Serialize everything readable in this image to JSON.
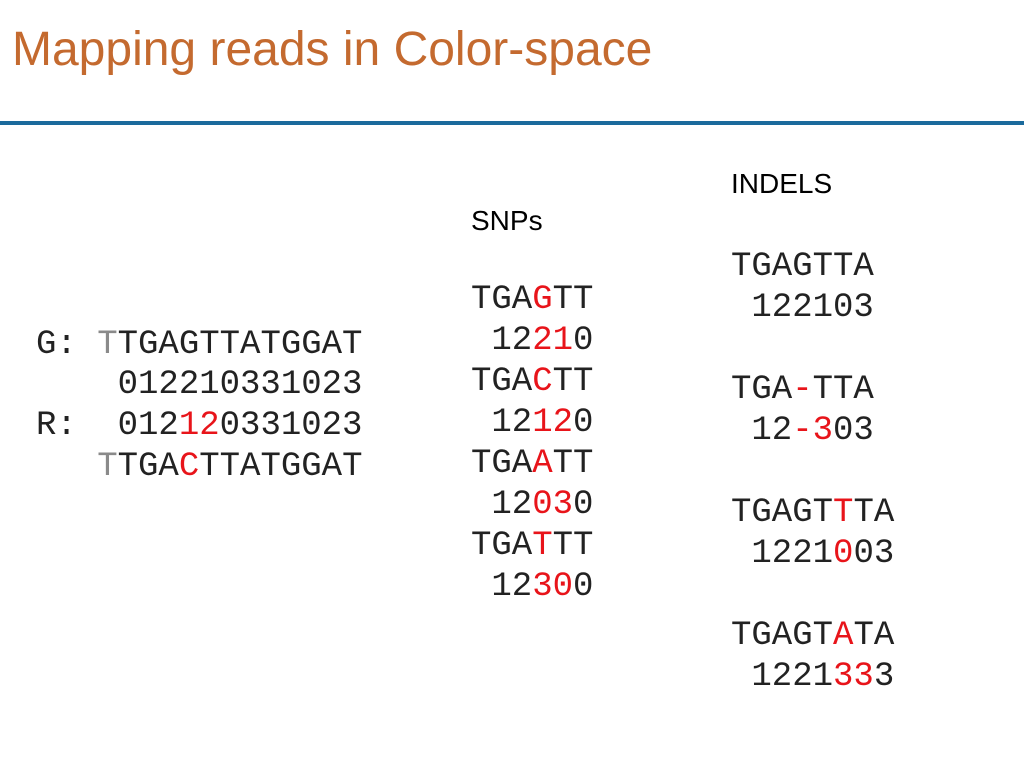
{
  "title": "Mapping reads in Color-space",
  "example": {
    "lines": [
      [
        "G: ",
        "T",
        "TGAGTTATGGAT"
      ],
      [
        "    012210331023"
      ],
      [
        "R:  012",
        "12",
        "0331023"
      ],
      [
        "   ",
        "T",
        "TGA",
        "C",
        "TTATGGAT"
      ]
    ]
  },
  "snps": {
    "heading": "SNPs",
    "lines": [
      [
        "TGA",
        "G",
        "TT"
      ],
      [
        " 12",
        "21",
        "0"
      ],
      [
        "TGA",
        "C",
        "TT"
      ],
      [
        " 12",
        "12",
        "0"
      ],
      [
        "TGA",
        "A",
        "TT"
      ],
      [
        " 12",
        "03",
        "0"
      ],
      [
        "TGA",
        "T",
        "TT"
      ],
      [
        " 12",
        "30",
        "0"
      ]
    ]
  },
  "indels": {
    "heading": "INDELS",
    "lines": [
      [
        "TGAGTTA"
      ],
      [
        " 122103"
      ],
      [
        "TGA",
        "-",
        "TTA"
      ],
      [
        " 12",
        "-3",
        "03"
      ],
      [
        "TGAGT",
        "T",
        "TA"
      ],
      [
        " 1221",
        "0",
        "03"
      ],
      [
        "TGAGT",
        "A",
        "TA"
      ],
      [
        " 1221",
        "33",
        "3"
      ]
    ]
  }
}
